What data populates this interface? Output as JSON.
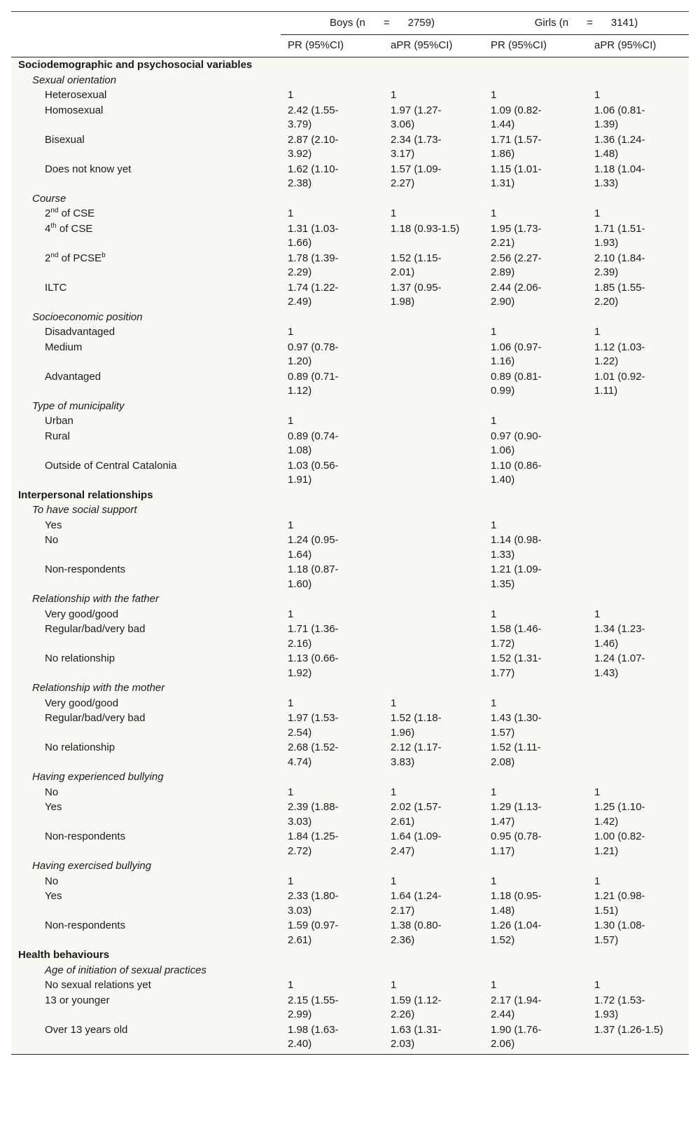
{
  "header": {
    "boys_label": "Boys (n",
    "boys_eq": "=",
    "boys_n": "2759)",
    "girls_label": "Girls (n",
    "girls_eq": "=",
    "girls_n": "3141)",
    "columns": [
      "PR (95%CI)",
      "aPR (95%CI)",
      "PR (95%CI)",
      "aPR (95%CI)"
    ]
  },
  "rows": [
    {
      "kind": "sec",
      "label": "Sociodemographic and psychosocial variables"
    },
    {
      "kind": "grp",
      "label": "Sexual orientation"
    },
    {
      "kind": "lvl",
      "label": "Heterosexual",
      "v": [
        "1",
        "1",
        "1",
        "1"
      ]
    },
    {
      "kind": "lvl",
      "label": "Homosexual",
      "v": [
        "2.42 (1.55-\n3.79)",
        "1.97 (1.27-\n3.06)",
        "1.09 (0.82-\n1.44)",
        "1.06 (0.81-\n1.39)"
      ]
    },
    {
      "kind": "lvl",
      "label": "Bisexual",
      "v": [
        "2.87 (2.10-\n3.92)",
        "2.34 (1.73-\n3.17)",
        "1.71 (1.57-\n1.86)",
        "1.36 (1.24-\n1.48)"
      ]
    },
    {
      "kind": "lvl",
      "label": "Does not know yet",
      "v": [
        "1.62 (1.10-\n2.38)",
        "1.57 (1.09-\n2.27)",
        "1.15 (1.01-\n1.31)",
        "1.18 (1.04-\n1.33)"
      ]
    },
    {
      "kind": "grp",
      "label": "Course"
    },
    {
      "kind": "lvl",
      "label": "2",
      "sup": "nd",
      "label_after": " of CSE",
      "v": [
        "1",
        "1",
        "1",
        "1"
      ]
    },
    {
      "kind": "lvl",
      "label": "4",
      "sup": "th",
      "label_after": " of CSE",
      "v": [
        "1.31 (1.03-\n1.66)",
        "1.18 (0.93-1.5)",
        "1.95 (1.73-\n2.21)",
        "1.71 (1.51-\n1.93)"
      ]
    },
    {
      "kind": "lvl",
      "label": "2",
      "sup": "nd",
      "label_after": " of PCSE",
      "sup2": "b",
      "v": [
        "1.78 (1.39-\n2.29)",
        "1.52 (1.15-\n2.01)",
        "2.56 (2.27-\n2.89)",
        "2.10 (1.84-\n2.39)"
      ]
    },
    {
      "kind": "lvl",
      "label": "ILTC",
      "v": [
        "1.74 (1.22-\n2.49)",
        "1.37 (0.95-\n1.98)",
        "2.44 (2.06-\n2.90)",
        "1.85 (1.55-\n2.20)"
      ]
    },
    {
      "kind": "grp",
      "label": "Socioeconomic position"
    },
    {
      "kind": "lvl",
      "label": "Disadvantaged",
      "v": [
        "1",
        "",
        "1",
        "1"
      ]
    },
    {
      "kind": "lvl",
      "label": "Medium",
      "v": [
        "0.97 (0.78-\n1.20)",
        "",
        "1.06 (0.97-\n1.16)",
        "1.12 (1.03-\n1.22)"
      ]
    },
    {
      "kind": "lvl",
      "label": "Advantaged",
      "v": [
        "0.89 (0.71-\n1.12)",
        "",
        "0.89 (0.81-\n0.99)",
        "1.01 (0.92-\n1.11)"
      ]
    },
    {
      "kind": "grp",
      "label": "Type of municipality"
    },
    {
      "kind": "lvl",
      "label": "Urban",
      "v": [
        "1",
        "",
        "1",
        ""
      ]
    },
    {
      "kind": "lvl",
      "label": "Rural",
      "v": [
        "0.89 (0.74-\n1.08)",
        "",
        "0.97 (0.90-\n1.06)",
        ""
      ]
    },
    {
      "kind": "lvl",
      "label": "Outside of Central Catalonia",
      "v": [
        "1.03 (0.56-\n1.91)",
        "",
        "1.10 (0.86-\n1.40)",
        ""
      ]
    },
    {
      "kind": "sec",
      "label": "Interpersonal relationships"
    },
    {
      "kind": "grp",
      "label": "To have social support"
    },
    {
      "kind": "lvl",
      "label": "Yes",
      "v": [
        "1",
        "",
        "1",
        ""
      ]
    },
    {
      "kind": "lvl",
      "label": "No",
      "v": [
        "1.24 (0.95-\n1.64)",
        "",
        "1.14 (0.98-\n1.33)",
        ""
      ]
    },
    {
      "kind": "lvl",
      "label": "Non-respondents",
      "v": [
        "1.18 (0.87-\n1.60)",
        "",
        "1.21 (1.09-\n1.35)",
        ""
      ]
    },
    {
      "kind": "grp",
      "label": "Relationship with the father"
    },
    {
      "kind": "lvl",
      "label": "Very good/good",
      "v": [
        "1",
        "",
        "1",
        "1"
      ]
    },
    {
      "kind": "lvl",
      "label": "Regular/bad/very bad",
      "v": [
        "1.71 (1.36-\n2.16)",
        "",
        "1.58 (1.46-\n1.72)",
        "1.34 (1.23-\n1.46)"
      ]
    },
    {
      "kind": "lvl",
      "label": "No relationship",
      "v": [
        "1.13 (0.66-\n1.92)",
        "",
        "1.52 (1.31-\n1.77)",
        "1.24 (1.07-\n1.43)"
      ]
    },
    {
      "kind": "grp",
      "label": "Relationship with the mother"
    },
    {
      "kind": "lvl",
      "label": "Very good/good",
      "v": [
        "1",
        "1",
        "1",
        ""
      ]
    },
    {
      "kind": "lvl",
      "label": "Regular/bad/very bad",
      "v": [
        "1.97 (1.53-\n2.54)",
        "1.52 (1.18-\n1.96)",
        "1.43 (1.30-\n1.57)",
        ""
      ]
    },
    {
      "kind": "lvl",
      "label": "No relationship",
      "v": [
        "2.68 (1.52-\n4.74)",
        "2.12 (1.17-\n3.83)",
        "1.52 (1.11-\n2.08)",
        ""
      ]
    },
    {
      "kind": "grp",
      "label": "Having experienced bullying"
    },
    {
      "kind": "lvl",
      "label": "No",
      "v": [
        "1",
        "1",
        "1",
        "1"
      ]
    },
    {
      "kind": "lvl",
      "label": "Yes",
      "v": [
        "2.39 (1.88-\n3.03)",
        "2.02 (1.57-\n2.61)",
        "1.29 (1.13-\n1.47)",
        "1.25 (1.10-\n1.42)"
      ]
    },
    {
      "kind": "lvl",
      "label": "Non-respondents",
      "v": [
        "1.84 (1.25-\n2.72)",
        "1.64 (1.09-\n2.47)",
        "0.95 (0.78-\n1.17)",
        "1.00 (0.82-\n1.21)"
      ]
    },
    {
      "kind": "grp",
      "label": "Having exercised bullying"
    },
    {
      "kind": "lvl",
      "label": "No",
      "v": [
        "1",
        "1",
        "1",
        "1"
      ]
    },
    {
      "kind": "lvl",
      "label": "Yes",
      "v": [
        "2.33 (1.80-\n3.03)",
        "1.64 (1.24-\n2.17)",
        "1.18 (0.95-\n1.48)",
        "1.21 (0.98-\n1.51)"
      ]
    },
    {
      "kind": "lvl",
      "label": "Non-respondents",
      "v": [
        "1.59 (0.97-\n2.61)",
        "1.38 (0.80-\n2.36)",
        "1.26 (1.04-\n1.52)",
        "1.30 (1.08-\n1.57)"
      ]
    },
    {
      "kind": "sec",
      "label": "Health behaviours"
    },
    {
      "kind": "grp2",
      "label": "Age of initiation of sexual practices"
    },
    {
      "kind": "lvl",
      "label": "No sexual relations yet",
      "v": [
        "1",
        "1",
        "1",
        "1"
      ]
    },
    {
      "kind": "lvl",
      "label": "13 or younger",
      "v": [
        "2.15 (1.55-\n2.99)",
        "1.59 (1.12-\n2.26)",
        "2.17 (1.94-\n2.44)",
        "1.72 (1.53-\n1.93)"
      ]
    },
    {
      "kind": "lvl",
      "label": "Over 13 years old",
      "v": [
        "1.98 (1.63-\n2.40)",
        "1.63 (1.31-\n2.03)",
        "1.90 (1.76-\n2.06)",
        "1.37 (1.26-1.5)"
      ]
    }
  ]
}
